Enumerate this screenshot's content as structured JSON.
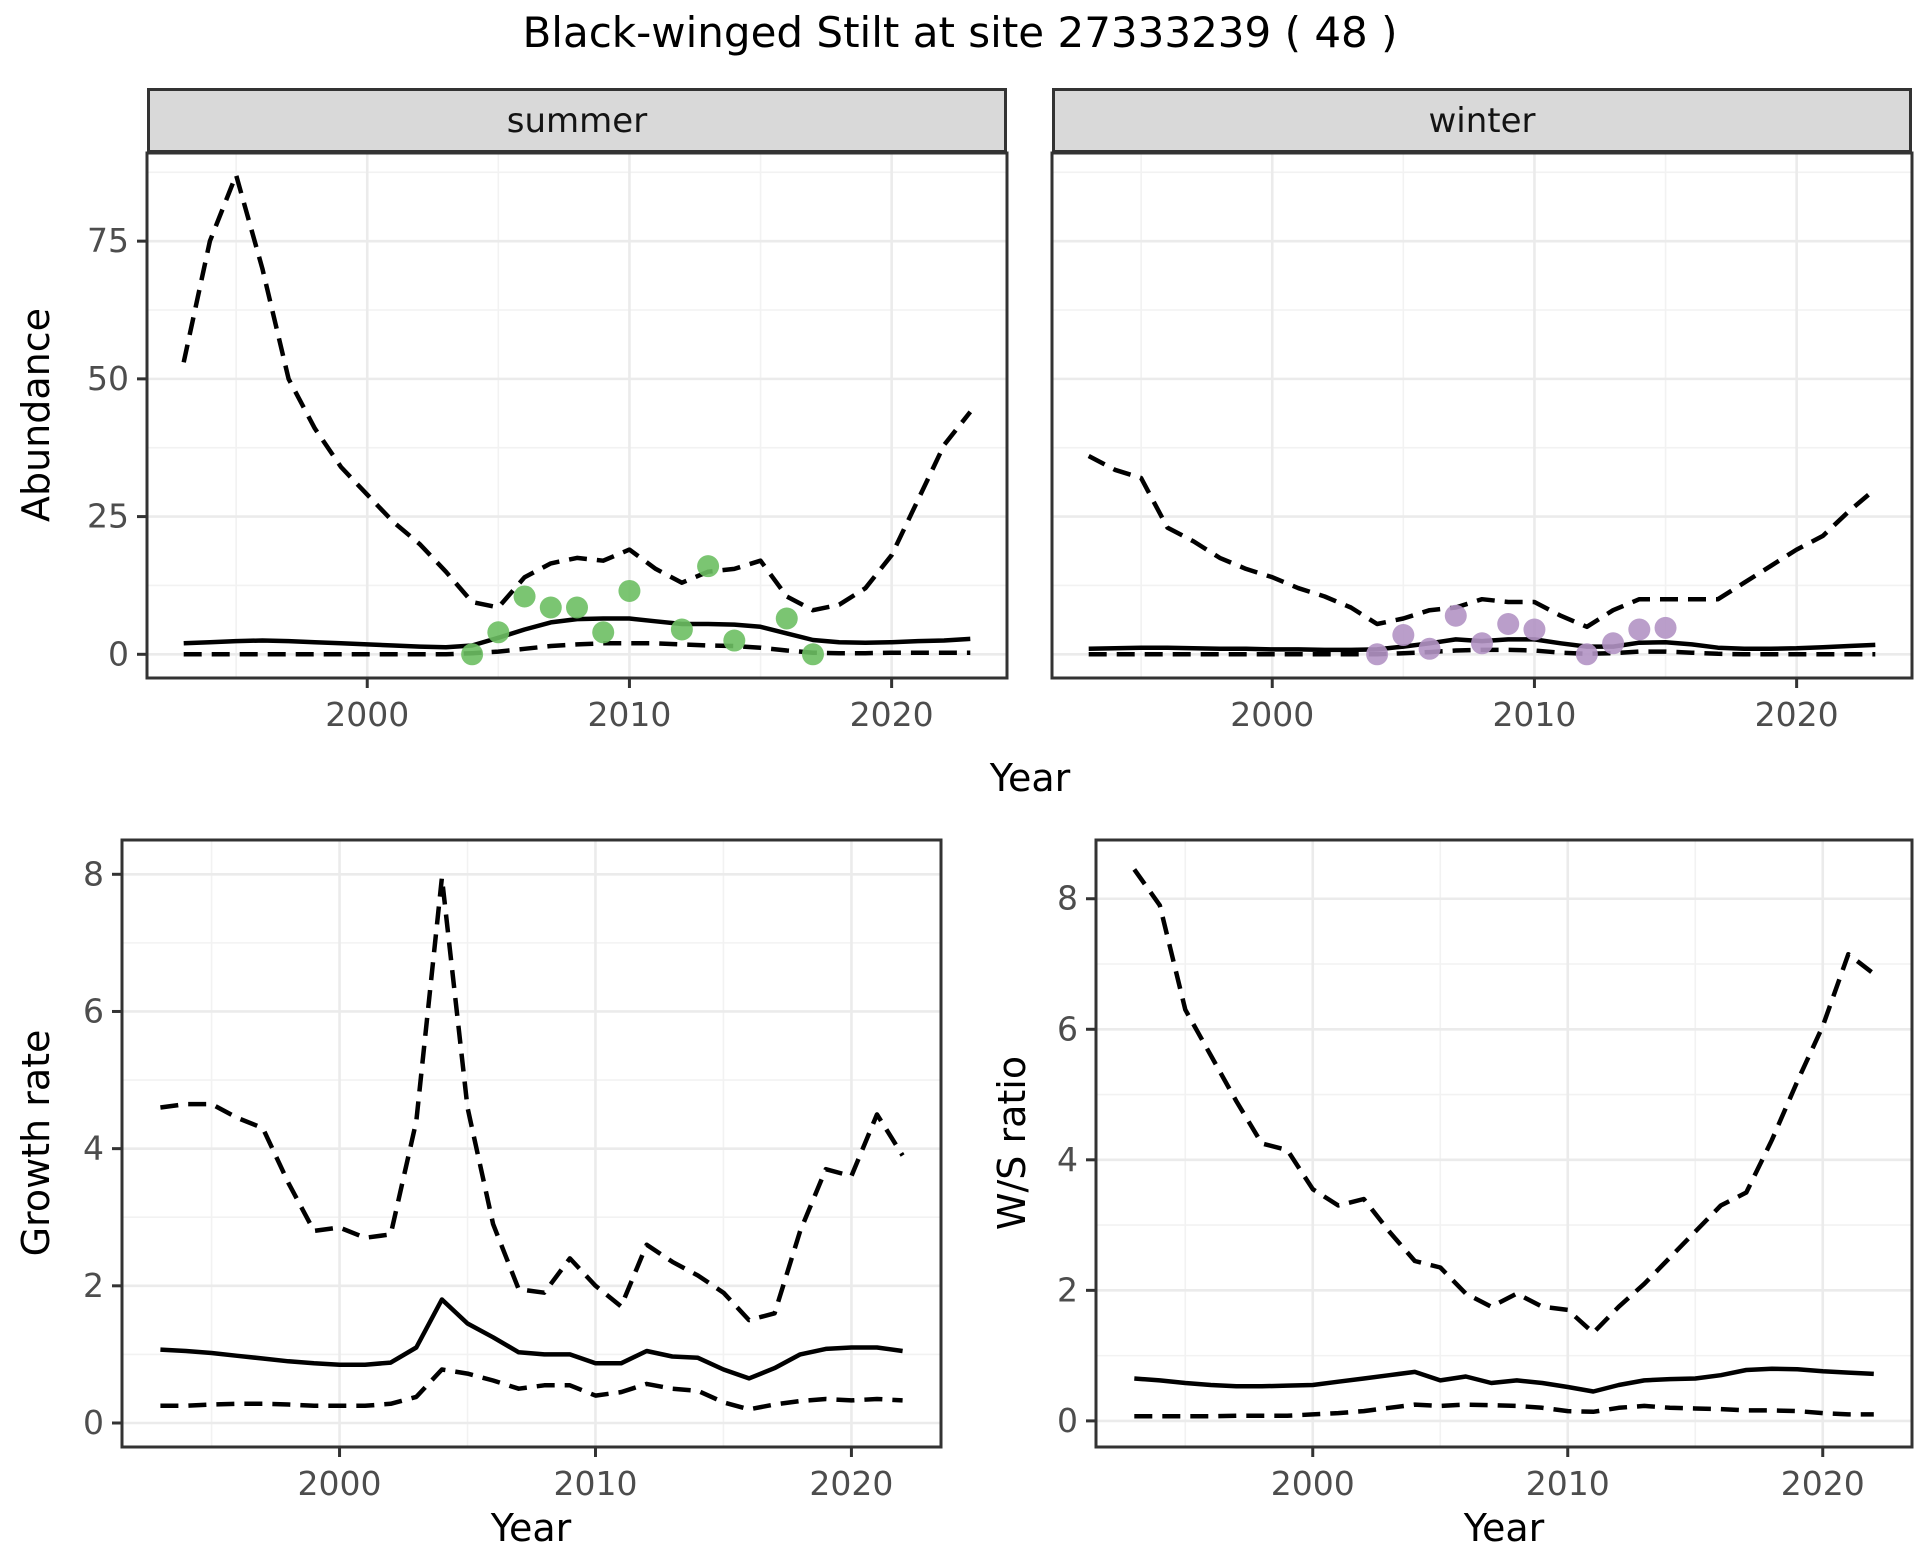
{
  "title": "Black-winged Stilt at site 27333239 ( 48 )",
  "colors": {
    "line": "#000000",
    "panel_border": "#333333",
    "grid_major": "#ebebeb",
    "grid_minor": "#f2f2f2",
    "strip_background": "#d9d9d9",
    "tick_text": "#4d4d4d",
    "summer_point": "#6dbf63",
    "winter_point": "#b394c4"
  },
  "chart_data": [
    {
      "id": "abundance-summer",
      "type": "line",
      "facet_label": "summer",
      "ylabel": "Abundance",
      "xlabel": "Year",
      "xlim": [
        1991.6,
        2024.4
      ],
      "ylim": [
        -4.3,
        91
      ],
      "x_ticks": [
        2000,
        2010,
        2020
      ],
      "y_ticks": [
        0,
        25,
        50,
        75
      ],
      "x_minor": [
        1995,
        2005,
        2015
      ],
      "y_minor": [
        12.5,
        37.5,
        62.5,
        87.5
      ],
      "x": [
        1993,
        1994,
        1995,
        1996,
        1997,
        1998,
        1999,
        2000,
        2001,
        2002,
        2003,
        2004,
        2005,
        2006,
        2007,
        2008,
        2009,
        2010,
        2011,
        2012,
        2013,
        2014,
        2015,
        2016,
        2017,
        2018,
        2019,
        2020,
        2021,
        2022,
        2023
      ],
      "series": [
        {
          "name": "upper_95ci",
          "linetype": "dashed",
          "values": [
            53,
            75,
            87,
            70,
            50,
            41,
            34,
            29,
            24,
            20,
            15,
            9.5,
            8.5,
            14,
            16.5,
            17.5,
            17,
            19,
            15.5,
            13,
            15,
            15.5,
            17,
            10.5,
            8,
            9,
            12,
            18,
            28,
            38,
            44
          ]
        },
        {
          "name": "median",
          "linetype": "solid",
          "values": [
            2,
            2.2,
            2.4,
            2.5,
            2.4,
            2.2,
            2,
            1.8,
            1.6,
            1.4,
            1.3,
            1.6,
            3,
            4.5,
            5.8,
            6.4,
            6.5,
            6.5,
            6,
            5.5,
            5.5,
            5.4,
            5,
            3.8,
            2.6,
            2.2,
            2.1,
            2.2,
            2.4,
            2.5,
            2.8
          ]
        },
        {
          "name": "lower_95ci",
          "linetype": "dashed",
          "values": [
            0,
            0,
            0,
            0,
            0,
            0,
            0,
            0,
            0,
            0,
            0,
            0.2,
            0.5,
            1,
            1.5,
            1.8,
            2,
            2,
            2,
            1.8,
            1.6,
            1.5,
            1.2,
            0.7,
            0.3,
            0.2,
            0.2,
            0.3,
            0.3,
            0.3,
            0.3
          ]
        }
      ],
      "points": {
        "name": "observed-summer",
        "color": "#6dbf63",
        "data": [
          [
            2004,
            0
          ],
          [
            2005,
            4
          ],
          [
            2006,
            10.5
          ],
          [
            2007,
            8.5
          ],
          [
            2008,
            8.5
          ],
          [
            2009,
            4
          ],
          [
            2010,
            11.5
          ],
          [
            2012,
            4.5
          ],
          [
            2013,
            16
          ],
          [
            2014,
            2.5
          ],
          [
            2016,
            6.5
          ],
          [
            2017,
            0
          ]
        ]
      }
    },
    {
      "id": "abundance-winter",
      "type": "line",
      "facet_label": "winter",
      "ylabel": "Abundance",
      "xlabel": "Year",
      "xlim": [
        1991.6,
        2024.4
      ],
      "ylim": [
        -4.3,
        91
      ],
      "x_ticks": [
        2000,
        2010,
        2020
      ],
      "y_ticks": [
        0,
        25,
        50,
        75
      ],
      "x_minor": [
        1995,
        2005,
        2015
      ],
      "y_minor": [
        12.5,
        37.5,
        62.5,
        87.5
      ],
      "x": [
        1993,
        1994,
        1995,
        1996,
        1997,
        1998,
        1999,
        2000,
        2001,
        2002,
        2003,
        2004,
        2005,
        2006,
        2007,
        2008,
        2009,
        2010,
        2011,
        2012,
        2013,
        2014,
        2015,
        2016,
        2017,
        2018,
        2019,
        2020,
        2021,
        2022,
        2023
      ],
      "series": [
        {
          "name": "upper_95ci",
          "linetype": "dashed",
          "values": [
            36,
            33.5,
            32,
            23,
            20.5,
            17.5,
            15.5,
            14,
            12,
            10.5,
            8.5,
            5.5,
            6.5,
            8,
            8.5,
            10,
            9.5,
            9.5,
            7,
            5,
            8,
            10,
            10,
            10,
            10,
            13,
            16,
            19,
            21.5,
            26,
            30
          ]
        },
        {
          "name": "median",
          "linetype": "solid",
          "values": [
            1,
            1.1,
            1.2,
            1.2,
            1.1,
            1,
            1,
            0.9,
            0.9,
            0.8,
            0.8,
            0.9,
            1.4,
            2,
            2.7,
            2.4,
            2.7,
            2.7,
            2,
            1.4,
            1.4,
            2.1,
            2.2,
            1.8,
            1.2,
            1,
            1,
            1.1,
            1.3,
            1.5,
            1.7
          ]
        },
        {
          "name": "lower_95ci",
          "linetype": "dashed",
          "values": [
            0,
            0,
            0,
            0,
            0,
            0,
            0,
            0,
            0,
            0,
            0,
            0,
            0.2,
            0.4,
            0.7,
            0.8,
            0.8,
            0.7,
            0.3,
            0.1,
            0.2,
            0.5,
            0.5,
            0.3,
            0.1,
            0,
            0,
            0,
            0,
            0,
            0
          ]
        }
      ],
      "points": {
        "name": "observed-winter",
        "color": "#b394c4",
        "data": [
          [
            2004,
            0
          ],
          [
            2005,
            3.5
          ],
          [
            2006,
            1
          ],
          [
            2007,
            7
          ],
          [
            2008,
            2
          ],
          [
            2009,
            5.5
          ],
          [
            2010,
            4.5
          ],
          [
            2012,
            0
          ],
          [
            2013,
            2
          ],
          [
            2014,
            4.5
          ],
          [
            2015,
            4.8
          ]
        ]
      }
    },
    {
      "id": "growth-rate",
      "type": "line",
      "facet_label": "",
      "ylabel": "Growth rate",
      "xlabel": "Year",
      "xlim": [
        1991.5,
        2023.5
      ],
      "ylim": [
        -0.35,
        8.5
      ],
      "x_ticks": [
        2000,
        2010,
        2020
      ],
      "y_ticks": [
        0,
        2,
        4,
        6,
        8
      ],
      "x_minor": [
        1995,
        2005,
        2015
      ],
      "y_minor": [
        1,
        3,
        5,
        7
      ],
      "x": [
        1993,
        1994,
        1995,
        1996,
        1997,
        1998,
        1999,
        2000,
        2001,
        2002,
        2003,
        2004,
        2005,
        2006,
        2007,
        2008,
        2009,
        2010,
        2011,
        2012,
        2013,
        2014,
        2015,
        2016,
        2017,
        2018,
        2019,
        2020,
        2021,
        2022
      ],
      "series": [
        {
          "name": "upper_95ci",
          "linetype": "dashed",
          "values": [
            4.6,
            4.65,
            4.65,
            4.45,
            4.3,
            3.5,
            2.8,
            2.85,
            2.7,
            2.75,
            4.4,
            7.95,
            4.6,
            2.9,
            1.95,
            1.9,
            2.4,
            2.0,
            1.7,
            2.6,
            2.35,
            2.15,
            1.9,
            1.5,
            1.6,
            2.8,
            3.7,
            3.6,
            4.5,
            3.9
          ]
        },
        {
          "name": "median",
          "linetype": "solid",
          "values": [
            1.07,
            1.05,
            1.02,
            0.98,
            0.94,
            0.9,
            0.87,
            0.85,
            0.85,
            0.88,
            1.1,
            1.8,
            1.45,
            1.25,
            1.03,
            1.0,
            1.0,
            0.87,
            0.87,
            1.05,
            0.97,
            0.95,
            0.78,
            0.65,
            0.8,
            1.0,
            1.08,
            1.1,
            1.1,
            1.05
          ]
        },
        {
          "name": "lower_95ci",
          "linetype": "dashed",
          "values": [
            0.25,
            0.25,
            0.27,
            0.28,
            0.28,
            0.27,
            0.25,
            0.25,
            0.25,
            0.28,
            0.38,
            0.78,
            0.72,
            0.62,
            0.5,
            0.55,
            0.55,
            0.4,
            0.45,
            0.57,
            0.5,
            0.47,
            0.3,
            0.2,
            0.27,
            0.32,
            0.35,
            0.33,
            0.35,
            0.33
          ]
        }
      ],
      "points": null
    },
    {
      "id": "ws-ratio",
      "type": "line",
      "facet_label": "",
      "ylabel": "W/S ratio",
      "xlabel": "Year",
      "xlim": [
        1991.5,
        2023.5
      ],
      "ylim": [
        -0.4,
        8.9
      ],
      "x_ticks": [
        2000,
        2010,
        2020
      ],
      "y_ticks": [
        0,
        2,
        4,
        6,
        8
      ],
      "x_minor": [
        1995,
        2005,
        2015
      ],
      "y_minor": [
        1,
        3,
        5,
        7
      ],
      "x": [
        1993,
        1994,
        1995,
        1996,
        1997,
        1998,
        1999,
        2000,
        2001,
        2002,
        2003,
        2004,
        2005,
        2006,
        2007,
        2008,
        2009,
        2010,
        2011,
        2012,
        2013,
        2014,
        2015,
        2016,
        2017,
        2018,
        2019,
        2020,
        2021,
        2022
      ],
      "series": [
        {
          "name": "upper_95ci",
          "linetype": "dashed",
          "values": [
            8.45,
            7.9,
            6.3,
            5.6,
            4.9,
            4.25,
            4.15,
            3.55,
            3.3,
            3.4,
            2.9,
            2.45,
            2.35,
            1.95,
            1.75,
            1.95,
            1.75,
            1.7,
            1.35,
            1.75,
            2.1,
            2.5,
            2.9,
            3.3,
            3.5,
            4.3,
            5.2,
            6.05,
            7.15,
            6.85
          ]
        },
        {
          "name": "median",
          "linetype": "solid",
          "values": [
            0.65,
            0.62,
            0.58,
            0.55,
            0.53,
            0.53,
            0.54,
            0.55,
            0.6,
            0.65,
            0.7,
            0.75,
            0.62,
            0.68,
            0.58,
            0.62,
            0.58,
            0.52,
            0.45,
            0.55,
            0.62,
            0.64,
            0.65,
            0.7,
            0.78,
            0.8,
            0.79,
            0.76,
            0.74,
            0.72
          ]
        },
        {
          "name": "lower_95ci",
          "linetype": "dashed",
          "values": [
            0.07,
            0.07,
            0.07,
            0.07,
            0.08,
            0.08,
            0.08,
            0.1,
            0.12,
            0.15,
            0.2,
            0.25,
            0.23,
            0.25,
            0.24,
            0.23,
            0.2,
            0.15,
            0.14,
            0.2,
            0.23,
            0.2,
            0.19,
            0.18,
            0.16,
            0.16,
            0.15,
            0.12,
            0.1,
            0.1
          ]
        }
      ],
      "points": null
    }
  ]
}
